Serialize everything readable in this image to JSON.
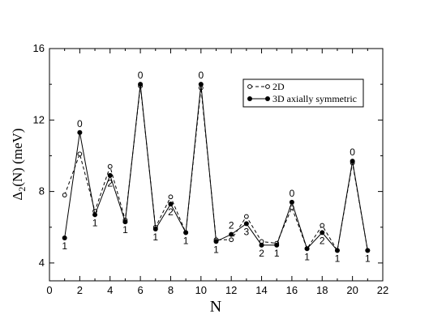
{
  "chart_data": {
    "type": "line",
    "xlabel": "N",
    "ylabel_main": "Δ",
    "ylabel_sub": "2",
    "ylabel_rest": "(N) (meV)",
    "xlim": [
      0,
      22
    ],
    "ylim": [
      3,
      16
    ],
    "xticks": [
      0,
      2,
      4,
      6,
      8,
      10,
      12,
      14,
      16,
      18,
      20,
      22
    ],
    "yticks": [
      4,
      8,
      12,
      16
    ],
    "grid": false,
    "legend_position": "top-right",
    "series": [
      {
        "name": "2D",
        "style": "dashed-open-circle",
        "color": "#000000",
        "x": [
          1,
          2,
          3,
          4,
          5,
          6,
          7,
          8,
          9,
          10,
          11,
          12,
          13,
          14,
          15,
          16,
          17,
          18,
          19,
          20,
          21
        ],
        "y": [
          7.8,
          10.1,
          6.9,
          9.4,
          6.4,
          13.9,
          6.0,
          7.7,
          5.7,
          13.8,
          5.3,
          5.3,
          6.6,
          5.2,
          5.1,
          7.1,
          4.8,
          6.1,
          4.7,
          9.6,
          4.7
        ]
      },
      {
        "name": "3D axially symmetric",
        "style": "solid-filled-circle",
        "color": "#000000",
        "x": [
          1,
          2,
          3,
          4,
          5,
          6,
          7,
          8,
          9,
          10,
          11,
          12,
          13,
          14,
          15,
          16,
          17,
          18,
          19,
          20,
          21
        ],
        "y": [
          5.4,
          11.3,
          6.7,
          8.9,
          6.3,
          14.0,
          5.9,
          7.3,
          5.7,
          14.0,
          5.2,
          5.6,
          6.2,
          5.0,
          5.0,
          7.4,
          4.8,
          5.7,
          4.7,
          9.7,
          4.7
        ]
      }
    ],
    "annotations": [
      {
        "x": 1,
        "text": "1",
        "pos": "below"
      },
      {
        "x": 2,
        "text": "0",
        "pos": "above"
      },
      {
        "x": 3,
        "text": "1",
        "pos": "below"
      },
      {
        "x": 4,
        "text": "2",
        "pos": "below"
      },
      {
        "x": 5,
        "text": "1",
        "pos": "below"
      },
      {
        "x": 6,
        "text": "0",
        "pos": "above"
      },
      {
        "x": 7,
        "text": "1",
        "pos": "below"
      },
      {
        "x": 8,
        "text": "2",
        "pos": "below"
      },
      {
        "x": 9,
        "text": "1",
        "pos": "below"
      },
      {
        "x": 10,
        "text": "0",
        "pos": "above"
      },
      {
        "x": 11,
        "text": "1",
        "pos": "below"
      },
      {
        "x": 12,
        "text": "2",
        "pos": "above"
      },
      {
        "x": 13,
        "text": "3",
        "pos": "below"
      },
      {
        "x": 14,
        "text": "2",
        "pos": "below"
      },
      {
        "x": 15,
        "text": "1",
        "pos": "below"
      },
      {
        "x": 16,
        "text": "0",
        "pos": "above"
      },
      {
        "x": 17,
        "text": "1",
        "pos": "below"
      },
      {
        "x": 18,
        "text": "2",
        "pos": "below"
      },
      {
        "x": 19,
        "text": "1",
        "pos": "below"
      },
      {
        "x": 20,
        "text": "0",
        "pos": "above"
      },
      {
        "x": 21,
        "text": "1",
        "pos": "below"
      }
    ]
  }
}
